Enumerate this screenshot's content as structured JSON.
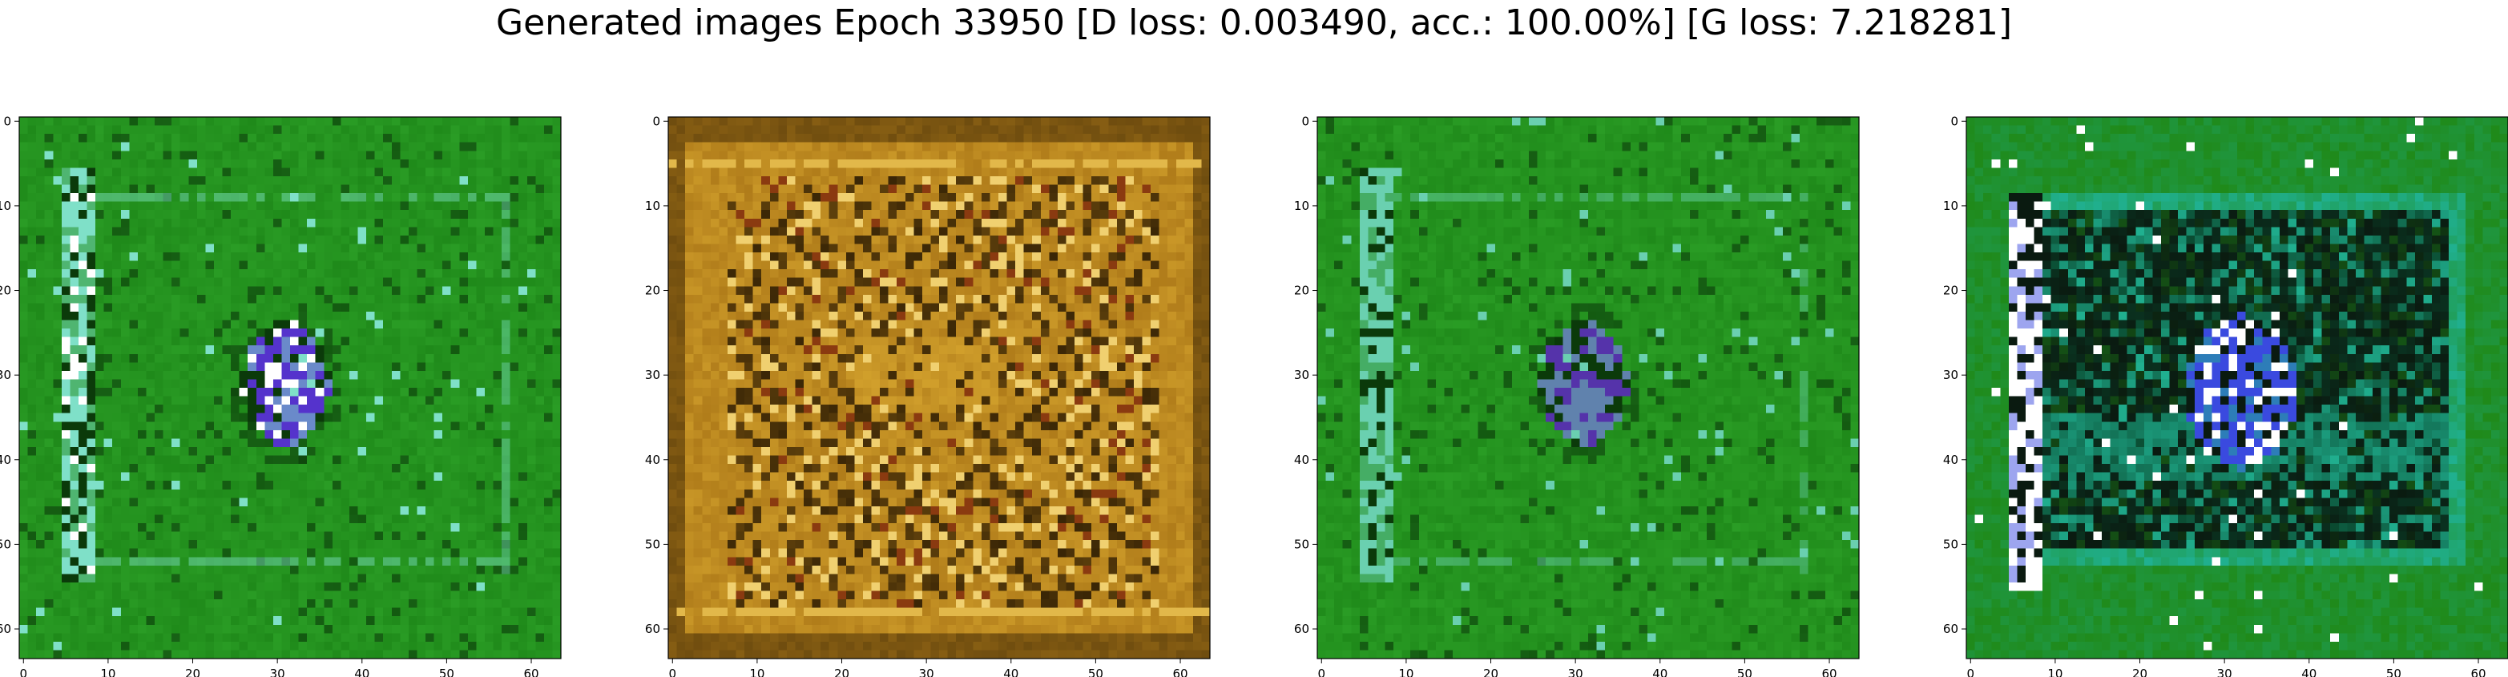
{
  "title": "Generated images Epoch 33950 [D loss: 0.003490, acc.: 100.00%] [G loss: 7.218281]",
  "chart_data": [
    {
      "type": "heatmap",
      "image": "generated-sample-1",
      "dominant_colors": [
        "#1f8a1a",
        "#2fa52a",
        "#0b3a0a",
        "#7fe0c8",
        "#5533cc",
        "#ffffff"
      ],
      "xlim": [
        0,
        63
      ],
      "ylim": [
        63,
        0
      ],
      "xticks": [
        0,
        10,
        20,
        30,
        40,
        50,
        60
      ],
      "yticks": [
        0,
        10,
        20,
        30,
        40,
        50,
        60
      ]
    },
    {
      "type": "heatmap",
      "image": "generated-sample-2",
      "dominant_colors": [
        "#b07c1a",
        "#d9a830",
        "#3a2606",
        "#8a3a10",
        "#f0d070"
      ],
      "xlim": [
        0,
        63
      ],
      "ylim": [
        63,
        0
      ],
      "xticks": [
        0,
        10,
        20,
        30,
        40,
        50,
        60
      ],
      "yticks": [
        0,
        10,
        20,
        30,
        40,
        50,
        60
      ]
    },
    {
      "type": "heatmap",
      "image": "generated-sample-3",
      "dominant_colors": [
        "#1f8a1a",
        "#2fa52a",
        "#0b3a0a",
        "#6ad0b0",
        "#5533aa"
      ],
      "xlim": [
        0,
        63
      ],
      "ylim": [
        63,
        0
      ],
      "xticks": [
        0,
        10,
        20,
        30,
        40,
        50,
        60
      ],
      "yticks": [
        0,
        10,
        20,
        30,
        40,
        50,
        60
      ]
    },
    {
      "type": "heatmap",
      "image": "generated-sample-4",
      "dominant_colors": [
        "#1f8a1a",
        "#0a1a10",
        "#0a4a30",
        "#20b090",
        "#3a4adf",
        "#ffffff"
      ],
      "xlim": [
        0,
        63
      ],
      "ylim": [
        63,
        0
      ],
      "xticks": [
        0,
        10,
        20,
        30,
        40,
        50,
        60
      ],
      "yticks": [
        0,
        10,
        20,
        30,
        40,
        50,
        60
      ]
    }
  ]
}
